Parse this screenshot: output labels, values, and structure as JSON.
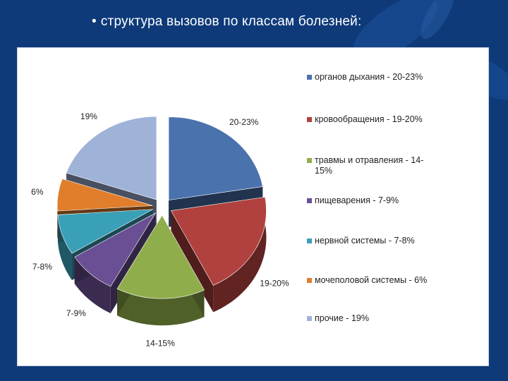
{
  "slide": {
    "bullet": "•",
    "title": "структура вызовов по классам болезней:"
  },
  "chart_data": {
    "type": "pie",
    "style": "3d-exploded",
    "slices": [
      {
        "label": "органов дыхания - 20-23%",
        "data_label": "20-23%",
        "value": 21.5,
        "color": "#4a72ad"
      },
      {
        "label": "кровообращения - 19-20%",
        "data_label": "19-20%",
        "value": 19.5,
        "color": "#b0413e"
      },
      {
        "label": "травмы и отравления - 14-15%",
        "data_label": "14-15%",
        "value": 14.5,
        "color": "#8fae4b"
      },
      {
        "label": "пищеварения - 7-9%",
        "data_label": "7-9%",
        "value": 8,
        "color": "#6b4f94"
      },
      {
        "label": "нервной системы - 7-8%",
        "data_label": "7-8%",
        "value": 7.5,
        "color": "#3aa0b8"
      },
      {
        "label": "мочеполовой системы - 6%",
        "data_label": "6%",
        "value": 6,
        "color": "#e07e2c"
      },
      {
        "label": "прочие - 19%",
        "data_label": "19%",
        "value": 19,
        "color": "#9fb2d8"
      }
    ],
    "legend_position": "right"
  }
}
